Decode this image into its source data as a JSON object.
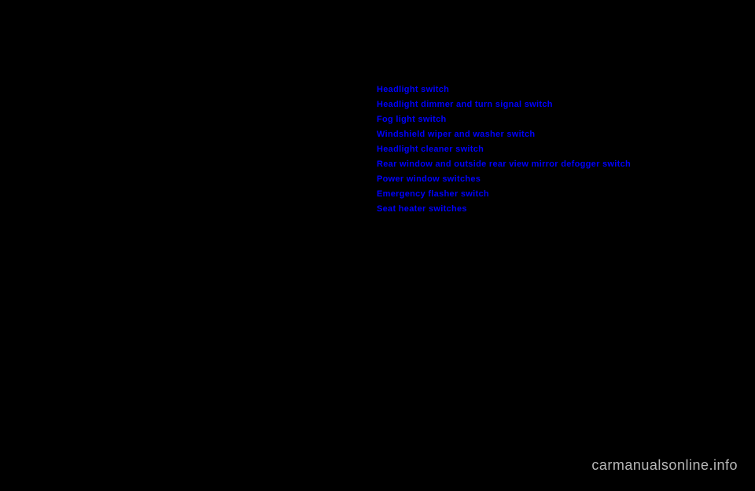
{
  "toc": {
    "items": [
      {
        "label": "Headlight switch"
      },
      {
        "label": "Headlight dimmer and turn signal switch"
      },
      {
        "label": "Fog light switch"
      },
      {
        "label": "Windshield wiper and washer switch"
      },
      {
        "label": "Headlight cleaner switch"
      },
      {
        "label": "Rear window and outside rear view mirror defogger switch"
      },
      {
        "label": "Power window switches"
      },
      {
        "label": "Emergency flasher switch"
      },
      {
        "label": "Seat heater switches"
      }
    ]
  },
  "watermark": {
    "text": "carmanualsonline.info"
  }
}
